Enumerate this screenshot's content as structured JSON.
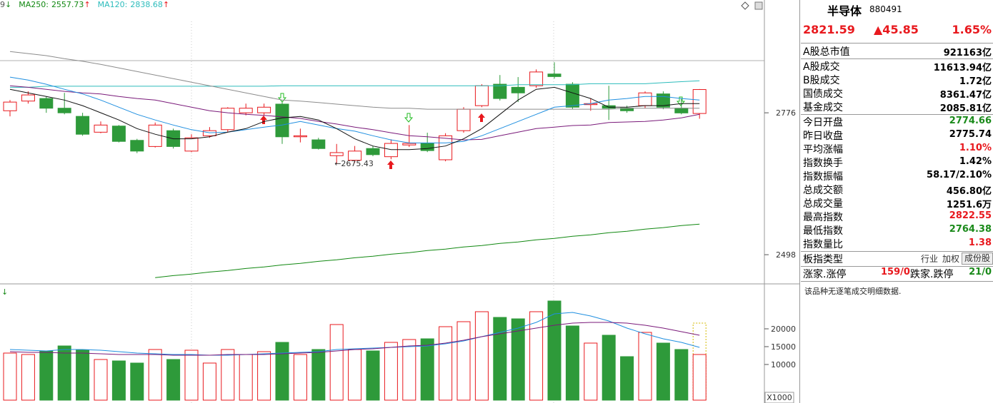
{
  "chart_data": [
    {
      "type": "candlestick",
      "legend_fragment": {
        "text": "9",
        "trend": "↓"
      },
      "open": [
        2780,
        2799,
        2804,
        2785,
        2769,
        2738,
        2750,
        2722,
        2710,
        2741,
        2701,
        2731,
        2743,
        2776,
        2776,
        2793,
        2729,
        2723,
        2692,
        2683,
        2706,
        2690,
        2713,
        2716,
        2684,
        2741,
        2790,
        2832,
        2826,
        2829,
        2852,
        2832,
        2792,
        2790,
        2785,
        2790,
        2813,
        2785,
        2774.66
      ],
      "high": [
        2801,
        2818,
        2808,
        2815,
        2776,
        2759,
        2752,
        2725,
        2757,
        2745,
        2734,
        2748,
        2787,
        2794,
        2794,
        2797,
        2745,
        2727,
        2715,
        2711,
        2711,
        2724,
        2752,
        2737,
        2736,
        2787,
        2832,
        2850,
        2846,
        2861,
        2875,
        2836,
        2804,
        2829,
        2790,
        2818,
        2818,
        2804,
        2822.55
      ],
      "low": [
        2769,
        2794,
        2776,
        2773,
        2731,
        2736,
        2718,
        2697,
        2708,
        2706,
        2699,
        2727,
        2738,
        2771,
        2771,
        2715,
        2718,
        2704,
        2675.43,
        2678,
        2691,
        2685,
        2709,
        2699,
        2681,
        2737,
        2787,
        2800,
        2797,
        2825,
        2843,
        2783,
        2780,
        2762,
        2776,
        2785,
        2783,
        2773,
        2764.38
      ],
      "close": [
        2797,
        2811,
        2785,
        2776,
        2734,
        2752,
        2720,
        2701,
        2752,
        2710,
        2727,
        2741,
        2785,
        2785,
        2787,
        2729,
        2731,
        2706,
        2698,
        2701,
        2694,
        2716,
        2716,
        2702,
        2731,
        2783,
        2829,
        2804,
        2815,
        2856,
        2847,
        2787,
        2794,
        2785,
        2780,
        2815,
        2787,
        2775.74,
        2821.59
      ],
      "low_label": "←2675.43",
      "up_color": "#e8191e",
      "down_color": "#2e9a3a",
      "ylim": [
        2445,
        2997
      ],
      "yticks": [
        2498,
        2776
      ],
      "series": [
        {
          "name": "MA250:",
          "trend": "↑",
          "color": "#118811",
          "values": [
            null,
            null,
            null,
            null,
            null,
            null,
            null,
            null,
            2453,
            2457,
            2460,
            2464,
            2467,
            2471,
            2474,
            2478,
            2481,
            2485,
            2488,
            2492,
            2495,
            2499,
            2502,
            2506,
            2509,
            2513,
            2516,
            2520,
            2523,
            2527,
            2530,
            2534,
            2537,
            2541,
            2544,
            2548,
            2551,
            2555,
            2557.73
          ]
        },
        {
          "name": "MA120:",
          "trend": "↑",
          "color": "#2cbcbc",
          "values": [
            2826,
            2826,
            2828,
            2828,
            2828,
            2828,
            2828,
            2828,
            2828,
            2828,
            2828,
            2828,
            2828,
            2828,
            2828,
            2829,
            2829,
            2829,
            2829,
            2829,
            2829,
            2829,
            2829,
            2829,
            2829,
            2829,
            2829,
            2829,
            2831,
            2831,
            2831,
            2831,
            2833,
            2833,
            2833,
            2833,
            2835,
            2837,
            2838.68
          ]
        },
        {
          "color": "#8c8c8c",
          "values": [
            2896,
            2892,
            2888,
            2882,
            2877,
            2871,
            2864,
            2857,
            2850,
            2843,
            2836,
            2829,
            2822,
            2815,
            2808,
            2801,
            2799,
            2796,
            2793,
            2790,
            2787,
            2785,
            2785,
            2783,
            2783,
            2783,
            2783,
            2783,
            2783,
            2783,
            2783,
            2783,
            2783,
            2783,
            2785,
            2785,
            2785,
            2785,
            2785
          ]
        },
        {
          "color": "#7a1a7a",
          "values": [
            2829,
            2826,
            2822,
            2818,
            2815,
            2813,
            2808,
            2804,
            2801,
            2794,
            2787,
            2780,
            2776,
            2773,
            2771,
            2768,
            2765,
            2759,
            2754,
            2748,
            2743,
            2737,
            2731,
            2729,
            2726,
            2723,
            2724,
            2731,
            2738,
            2745,
            2748,
            2751,
            2752,
            2757,
            2758,
            2759,
            2762,
            2766,
            2773
          ]
        },
        {
          "color": "#1f8fe0",
          "values": [
            2846,
            2840,
            2832,
            2822,
            2813,
            2801,
            2787,
            2773,
            2762,
            2752,
            2743,
            2737,
            2738,
            2743,
            2748,
            2752,
            2759,
            2752,
            2745,
            2740,
            2731,
            2723,
            2717,
            2717,
            2717,
            2720,
            2731,
            2745,
            2759,
            2773,
            2787,
            2790,
            2794,
            2801,
            2804,
            2808,
            2808,
            2804,
            2801
          ]
        },
        {
          "color": "#111111",
          "values": [
            2822,
            2815,
            2808,
            2801,
            2790,
            2776,
            2762,
            2745,
            2734,
            2725,
            2725,
            2729,
            2738,
            2745,
            2759,
            2766,
            2769,
            2762,
            2745,
            2725,
            2711,
            2704,
            2704,
            2706,
            2711,
            2725,
            2745,
            2773,
            2801,
            2822,
            2826,
            2815,
            2804,
            2787,
            2787,
            2790,
            2790,
            2794,
            2794
          ]
        }
      ]
    },
    {
      "type": "bar",
      "marker": "↓",
      "unit_label": "X1000",
      "values": [
        13200,
        12800,
        13800,
        15200,
        14000,
        11400,
        11000,
        10400,
        14200,
        11400,
        14000,
        10400,
        14200,
        12800,
        13600,
        16200,
        12800,
        14200,
        21200,
        14200,
        13800,
        16200,
        17000,
        17200,
        20600,
        22000,
        24800,
        23200,
        22800,
        24800,
        27800,
        20800,
        16000,
        18200,
        12200,
        19000,
        16000,
        14200,
        12800
      ],
      "projected": 21600,
      "projected_color": "#d4b800",
      "ylim": [
        0,
        31600
      ],
      "yticks": [
        10000,
        15000,
        20000
      ],
      "series": [
        {
          "color": "#1f8fe0",
          "values": [
            14200,
            14000,
            13800,
            14200,
            14200,
            14000,
            13600,
            13200,
            13000,
            12800,
            12800,
            12600,
            12600,
            12800,
            13000,
            13200,
            13400,
            13600,
            14200,
            14400,
            14600,
            14800,
            15000,
            15200,
            15800,
            16600,
            17800,
            19000,
            20200,
            21800,
            24200,
            24600,
            23600,
            22200,
            20200,
            18600,
            17200,
            16200,
            14800
          ]
        },
        {
          "color": "#7a1a7a",
          "values": [
            13600,
            13400,
            13400,
            13200,
            13200,
            13000,
            12800,
            12800,
            12800,
            12600,
            12600,
            12600,
            12800,
            12800,
            12800,
            13000,
            13200,
            13400,
            13800,
            14200,
            14400,
            14800,
            15200,
            15400,
            16000,
            16800,
            17800,
            18600,
            19400,
            20200,
            21000,
            21600,
            21800,
            21800,
            21600,
            21000,
            20200,
            19200,
            18200
          ]
        }
      ]
    }
  ],
  "panel": {
    "name": "半导体",
    "code": "880491",
    "price": "2821.59",
    "change": "▲45.85",
    "percent": "1.65%",
    "quote_color": "#e8191e",
    "groups": [
      [
        {
          "label": "A股总市值",
          "value": "921163亿",
          "color": "#000000"
        }
      ],
      [
        {
          "label": "A股成交",
          "value": "11613.94亿",
          "color": "#000000"
        },
        {
          "label": "B股成交",
          "value": "1.72亿",
          "color": "#000000"
        },
        {
          "label": "国债成交",
          "value": "8361.47亿",
          "color": "#000000"
        },
        {
          "label": "基金成交",
          "value": "2085.81亿",
          "color": "#000000"
        }
      ],
      [
        {
          "label": "今日开盘",
          "value": "2774.66",
          "color": "#1a8a1a"
        },
        {
          "label": "昨日收盘",
          "value": "2775.74",
          "color": "#000000"
        },
        {
          "label": "平均涨幅",
          "value": "1.10%",
          "color": "#e8191e"
        },
        {
          "label": "指数换手",
          "value": "1.42%",
          "color": "#000000"
        },
        {
          "label": "指数振幅",
          "value": "58.17/2.10%",
          "color": "#000000"
        },
        {
          "label": "总成交额",
          "value": "456.80亿",
          "color": "#000000"
        },
        {
          "label": "总成交量",
          "value": "1251.6万",
          "color": "#000000"
        },
        {
          "label": "最高指数",
          "value": "2822.55",
          "color": "#e8191e"
        },
        {
          "label": "最低指数",
          "value": "2764.38",
          "color": "#1a8a1a"
        },
        {
          "label": "指数量比",
          "value": "1.38",
          "color": "#e8191e"
        }
      ]
    ],
    "index_type": {
      "label": "板指类型",
      "options": [
        "行业",
        "加权",
        "成份股"
      ]
    },
    "breadth": {
      "up_label": "涨家.涨停",
      "up_value": "159/0",
      "down_label": "跌家.跌停",
      "down_value": "21/0"
    },
    "note": "该品种无逐笔成交明细数据."
  }
}
